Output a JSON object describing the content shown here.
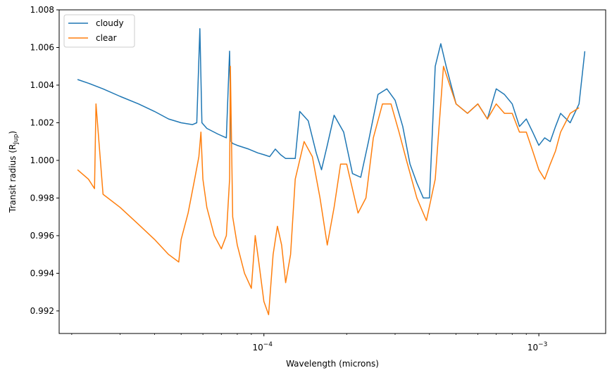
{
  "chart_data": {
    "type": "line",
    "xscale": "log",
    "xlabel": "Wavelength (microns)",
    "ylabel_main": "Transit radius (R",
    "ylabel_sub": "Jup",
    "ylabel_end": ")",
    "xlim": [
      1.8e-05,
      0.00175
    ],
    "ylim": [
      0.9908,
      1.008
    ],
    "yticks": [
      0.992,
      0.994,
      0.996,
      0.998,
      1.0,
      1.002,
      1.004,
      1.006,
      1.008
    ],
    "ytick_labels": [
      "0.992",
      "0.994",
      "0.996",
      "0.998",
      "1.000",
      "1.002",
      "1.004",
      "1.006",
      "1.008"
    ],
    "xticks": [
      0.0001,
      0.001
    ],
    "xtick_bases": [
      "10",
      "10"
    ],
    "xtick_exps": [
      "−4",
      "−3"
    ],
    "grid": false,
    "legend_position": "upper-left",
    "series": [
      {
        "name": "cloudy",
        "color": "#1f77b4",
        "x": [
          2.1e-05,
          2.3e-05,
          2.6e-05,
          3e-05,
          3.5e-05,
          4e-05,
          4.5e-05,
          5e-05,
          5.5e-05,
          5.7e-05,
          5.85e-05,
          5.95e-05,
          6.2e-05,
          6.8e-05,
          7.3e-05,
          7.5e-05,
          7.6e-05,
          7.7e-05,
          8e-05,
          8.8e-05,
          9.5e-05,
          0.0001,
          0.000105,
          0.00011,
          0.000115,
          0.00012,
          0.00013,
          0.000135,
          0.000145,
          0.000155,
          0.000162,
          0.00017,
          0.00018,
          0.000195,
          0.00021,
          0.000225,
          0.00024,
          0.00026,
          0.00028,
          0.0003,
          0.00032,
          0.00034,
          0.00036,
          0.00038,
          0.0004,
          0.00042,
          0.00044,
          0.00046,
          0.0005,
          0.00055,
          0.0006,
          0.00065,
          0.0007,
          0.00075,
          0.0008,
          0.00085,
          0.0009,
          0.00095,
          0.001,
          0.00105,
          0.0011,
          0.00115,
          0.0012,
          0.0013,
          0.0014,
          0.00147
        ],
        "y": [
          1.0043,
          1.0041,
          1.0038,
          1.0034,
          1.003,
          1.0026,
          1.0022,
          1.002,
          1.0019,
          1.002,
          1.007,
          1.002,
          1.0017,
          1.0014,
          1.0012,
          1.0058,
          1.001,
          1.0009,
          1.0008,
          1.0006,
          1.0004,
          1.0003,
          1.0002,
          1.0006,
          1.0003,
          1.0001,
          1.0001,
          1.0026,
          1.0021,
          1.0004,
          0.9995,
          1.0008,
          1.0024,
          1.0015,
          0.9993,
          0.9991,
          1.001,
          1.0035,
          1.0038,
          1.0032,
          1.0018,
          0.9998,
          0.9988,
          0.998,
          0.998,
          1.005,
          1.0062,
          1.005,
          1.003,
          1.0025,
          1.003,
          1.0022,
          1.0038,
          1.0035,
          1.003,
          1.0018,
          1.0022,
          1.0015,
          1.0008,
          1.0012,
          1.001,
          1.0018,
          1.0025,
          1.002,
          1.003,
          1.0058
        ]
      },
      {
        "name": "clear",
        "color": "#ff7f0e",
        "x": [
          2.1e-05,
          2.3e-05,
          2.42e-05,
          2.45e-05,
          2.6e-05,
          3e-05,
          3.5e-05,
          4e-05,
          4.5e-05,
          4.9e-05,
          5e-05,
          5.3e-05,
          5.6e-05,
          5.8e-05,
          5.9e-05,
          6e-05,
          6.2e-05,
          6.6e-05,
          7e-05,
          7.3e-05,
          7.5e-05,
          7.55e-05,
          7.7e-05,
          8e-05,
          8.5e-05,
          9e-05,
          9.3e-05,
          9.6e-05,
          0.0001,
          0.000104,
          0.000108,
          0.000112,
          0.000116,
          0.00012,
          0.000125,
          0.00013,
          0.00014,
          0.00015,
          0.00016,
          0.00017,
          0.00018,
          0.00019,
          0.0002,
          0.00022,
          0.000235,
          0.00025,
          0.00027,
          0.00029,
          0.00031,
          0.00033,
          0.00036,
          0.00039,
          0.00042,
          0.00045,
          0.0005,
          0.00055,
          0.0006,
          0.00065,
          0.0007,
          0.00075,
          0.0008,
          0.00085,
          0.0009,
          0.00095,
          0.001,
          0.00105,
          0.0011,
          0.00115,
          0.0012,
          0.0013,
          0.0014
        ],
        "y": [
          0.9995,
          0.999,
          0.9985,
          1.003,
          0.9982,
          0.9975,
          0.9966,
          0.9958,
          0.995,
          0.9946,
          0.9958,
          0.9972,
          0.999,
          1.0002,
          1.0015,
          0.999,
          0.9975,
          0.996,
          0.9953,
          0.996,
          0.999,
          1.005,
          0.997,
          0.9955,
          0.994,
          0.9932,
          0.996,
          0.9945,
          0.9925,
          0.9918,
          0.995,
          0.9965,
          0.9955,
          0.9935,
          0.995,
          0.999,
          1.001,
          1.0002,
          0.998,
          0.9955,
          0.9975,
          0.9998,
          0.9998,
          0.9972,
          0.998,
          1.0012,
          1.003,
          1.003,
          1.0015,
          1.0,
          0.998,
          0.9968,
          0.999,
          1.005,
          1.003,
          1.0025,
          1.003,
          1.0022,
          1.003,
          1.0025,
          1.0025,
          1.0015,
          1.0015,
          1.0005,
          0.9995,
          0.999,
          0.9998,
          1.0005,
          1.0015,
          1.0025,
          1.0028
        ]
      }
    ]
  }
}
